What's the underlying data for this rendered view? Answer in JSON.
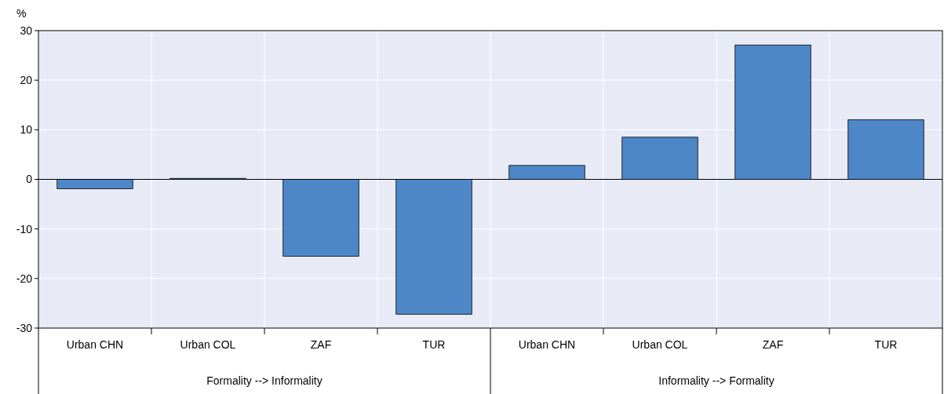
{
  "chart_data": {
    "type": "bar",
    "ylabel": "%",
    "categories": [
      "Urban CHN",
      "Urban COL",
      "ZAF",
      "TUR",
      "Urban CHN",
      "Urban COL",
      "ZAF",
      "TUR"
    ],
    "values": [
      -1.9,
      0.2,
      -15.5,
      -27.2,
      2.8,
      8.5,
      27.1,
      12.0
    ],
    "color": "#4e87c8",
    "ylim": [
      -30,
      30
    ],
    "yticks": [
      -30,
      -20,
      -10,
      0,
      10,
      20,
      30
    ],
    "grid": true,
    "annotations": [
      "Formality --> Informality",
      "Informality --> Formality"
    ]
  }
}
